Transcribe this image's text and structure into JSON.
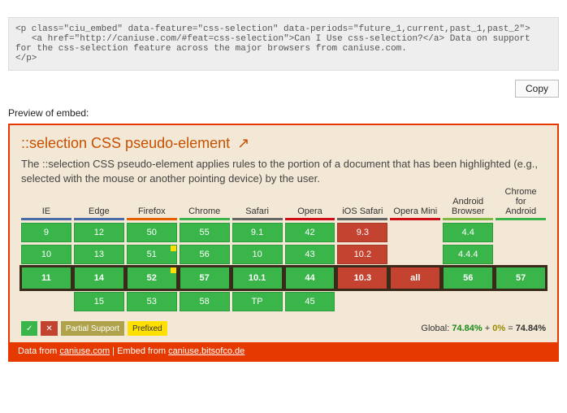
{
  "code_snippet": "<p class=\"ciu_embed\" data-feature=\"css-selection\" data-periods=\"future_1,current,past_1,past_2\">\n   <a href=\"http://caniuse.com/#feat=css-selection\">Can I Use css-selection?</a> Data on support for the css-selection feature across the major browsers from caniuse.com.\n</p>",
  "copy_label": "Copy",
  "preview_label": "Preview of embed:",
  "title": "::selection CSS pseudo-element",
  "ext_glyph": "↗",
  "description": "The ::selection CSS pseudo-element applies rules to the portion of a document that has been highlighted (e.g., selected with the mouse or another pointing device) by the user.",
  "colors": {
    "supported": "#39b54a",
    "unsupported": "#c44230",
    "prefixed_note": "#ffe000",
    "border_ie": "#4a6aa8",
    "border_edge": "#4a6aa8",
    "border_firefox": "#e66000",
    "border_chrome": "#39b54a",
    "border_safari": "#666666",
    "border_opera": "#cc0f16",
    "border_ios": "#666666",
    "border_operamini": "#cc0f16",
    "border_android": "#7fba42",
    "border_chrand": "#39b54a"
  },
  "browsers": [
    {
      "key": "ie",
      "name": "IE"
    },
    {
      "key": "edge",
      "name": "Edge"
    },
    {
      "key": "firefox",
      "name": "Firefox"
    },
    {
      "key": "chrome",
      "name": "Chrome"
    },
    {
      "key": "safari",
      "name": "Safari"
    },
    {
      "key": "opera",
      "name": "Opera"
    },
    {
      "key": "ios",
      "name": "iOS Safari"
    },
    {
      "key": "operamini",
      "name": "Opera Mini"
    },
    {
      "key": "android",
      "name": "Android\nBrowser"
    },
    {
      "key": "chrand",
      "name": "Chrome\nfor\nAndroid"
    }
  ],
  "rows": [
    {
      "id": "past_2",
      "cells": [
        {
          "v": "9",
          "s": "supported"
        },
        {
          "v": "12",
          "s": "supported"
        },
        {
          "v": "50",
          "s": "supported"
        },
        {
          "v": "55",
          "s": "supported"
        },
        {
          "v": "9.1",
          "s": "supported"
        },
        {
          "v": "42",
          "s": "supported"
        },
        {
          "v": "9.3",
          "s": "unsupported"
        },
        null,
        {
          "v": "4.4",
          "s": "supported"
        },
        null
      ]
    },
    {
      "id": "past_1",
      "cells": [
        {
          "v": "10",
          "s": "supported"
        },
        {
          "v": "13",
          "s": "supported"
        },
        {
          "v": "51",
          "s": "supported",
          "note": true
        },
        {
          "v": "56",
          "s": "supported"
        },
        {
          "v": "10",
          "s": "supported"
        },
        {
          "v": "43",
          "s": "supported"
        },
        {
          "v": "10.2",
          "s": "unsupported"
        },
        null,
        {
          "v": "4.4.4",
          "s": "supported"
        },
        null
      ]
    },
    {
      "id": "current",
      "cells": [
        {
          "v": "11",
          "s": "supported"
        },
        {
          "v": "14",
          "s": "supported"
        },
        {
          "v": "52",
          "s": "supported",
          "note": true
        },
        {
          "v": "57",
          "s": "supported"
        },
        {
          "v": "10.1",
          "s": "supported"
        },
        {
          "v": "44",
          "s": "supported"
        },
        {
          "v": "10.3",
          "s": "unsupported"
        },
        {
          "v": "all",
          "s": "unsupported"
        },
        {
          "v": "56",
          "s": "supported"
        },
        {
          "v": "57",
          "s": "supported"
        }
      ]
    },
    {
      "id": "future_1",
      "cells": [
        null,
        {
          "v": "15",
          "s": "supported"
        },
        {
          "v": "53",
          "s": "supported"
        },
        {
          "v": "58",
          "s": "supported"
        },
        {
          "v": "TP",
          "s": "supported"
        },
        {
          "v": "45",
          "s": "supported"
        },
        null,
        null,
        null,
        null
      ]
    }
  ],
  "legend": {
    "supported_glyph": "✓",
    "unsupported_glyph": "✕",
    "partial_label": "Partial Support",
    "prefixed_label": "Prefixed"
  },
  "global": {
    "label": "Global:",
    "green": "74.84%",
    "plus": "+",
    "yellow": "0%",
    "eq": "=",
    "total": "74.84%"
  },
  "footer": {
    "t1": "Data from ",
    "l1": "caniuse.com",
    "t2": " | Embed from ",
    "l2": "caniuse.bitsofco.de"
  }
}
